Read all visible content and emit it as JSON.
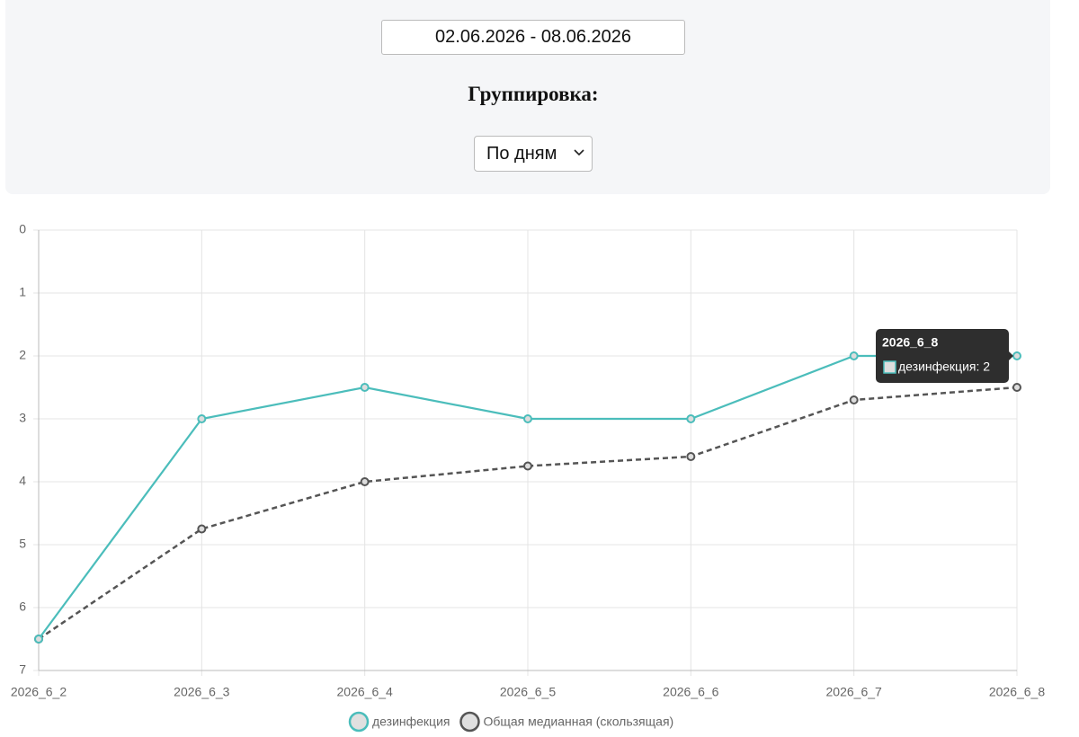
{
  "controls": {
    "date_range": "02.06.2026 - 08.06.2026",
    "grouping_label": "Группировка:",
    "grouping_value": "По дням"
  },
  "chart_data": {
    "type": "line",
    "categories": [
      "2026_6_2",
      "2026_6_3",
      "2026_6_4",
      "2026_6_5",
      "2026_6_6",
      "2026_6_7",
      "2026_6_8"
    ],
    "series": [
      {
        "name": "дезинфекция",
        "color": "#4bbdbb",
        "dashed": false,
        "values": [
          6.5,
          3,
          2.5,
          3,
          3,
          2,
          2
        ]
      },
      {
        "name": "Общая медианная (скользящая)",
        "color": "#555555",
        "dashed": true,
        "values": [
          6.5,
          4.75,
          4,
          3.75,
          3.6,
          2.7,
          2.5
        ]
      }
    ],
    "ylim": [
      0,
      7
    ],
    "yticks": [
      0,
      1,
      2,
      3,
      4,
      5,
      6,
      7
    ],
    "y_reversed": true,
    "grid": true,
    "tooltip": {
      "title": "2026_6_8",
      "label": "дезинфекция: 2",
      "series_index": 0,
      "category_index": 6
    }
  }
}
